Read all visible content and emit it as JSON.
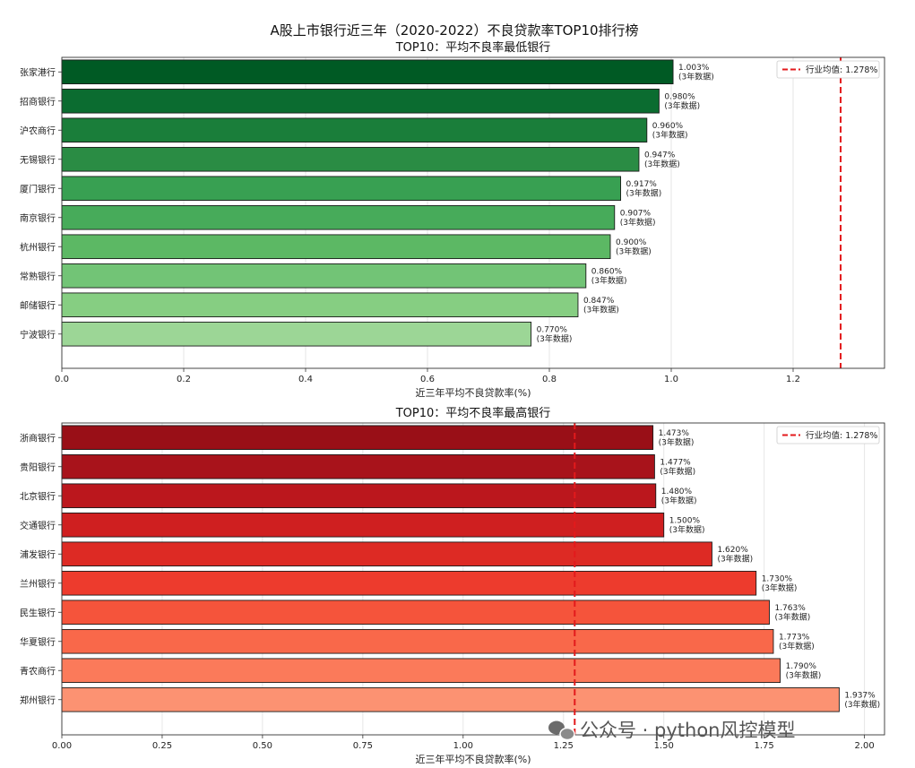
{
  "suptitle": "A股上市银行近三年（2020-2022）不良贷款率TOP10排行榜",
  "watermark": "公众号 · python风控模型",
  "chart_data": [
    {
      "type": "bar",
      "orientation": "horizontal",
      "title": "TOP10：平均不良率最低银行",
      "xlabel": "近三年平均不良贷款率(%)",
      "xlim": [
        0,
        1.35
      ],
      "xticks": [
        0.0,
        0.2,
        0.4,
        0.6,
        0.8,
        1.0,
        1.2
      ],
      "xtick_labels": [
        "0.0",
        "0.2",
        "0.4",
        "0.6",
        "0.8",
        "1.0",
        "1.2"
      ],
      "grid": "x",
      "categories": [
        "张家港行",
        "招商银行",
        "沪农商行",
        "无锡银行",
        "厦门银行",
        "南京银行",
        "杭州银行",
        "常熟银行",
        "邮储银行",
        "宁波银行"
      ],
      "values": [
        1.003,
        0.98,
        0.96,
        0.947,
        0.917,
        0.907,
        0.9,
        0.86,
        0.847,
        0.77
      ],
      "value_labels": [
        "1.003%",
        "0.980%",
        "0.960%",
        "0.947%",
        "0.917%",
        "0.907%",
        "0.900%",
        "0.860%",
        "0.847%",
        "0.770%"
      ],
      "sub_label": "(3年数据)",
      "colors": [
        "#005a24",
        "#0b6c30",
        "#1a7e3a",
        "#2a8c44",
        "#38a052",
        "#47ab5a",
        "#5cb864",
        "#72c476",
        "#86ce82",
        "#9cd696"
      ],
      "reference_line": {
        "value": 1.278,
        "label": "行业均值: 1.278%",
        "color": "#e31a1c"
      },
      "legend": "top-right"
    },
    {
      "type": "bar",
      "orientation": "horizontal",
      "title": "TOP10：平均不良率最高银行",
      "xlabel": "近三年平均不良贷款率(%)",
      "xlim": [
        0,
        2.05
      ],
      "xticks": [
        0.0,
        0.25,
        0.5,
        0.75,
        1.0,
        1.25,
        1.5,
        1.75,
        2.0
      ],
      "xtick_labels": [
        "0.00",
        "0.25",
        "0.50",
        "0.75",
        "1.00",
        "1.25",
        "1.50",
        "1.75",
        "2.00"
      ],
      "grid": "x",
      "categories": [
        "浙商银行",
        "贵阳银行",
        "北京银行",
        "交通银行",
        "浦发银行",
        "兰州银行",
        "民生银行",
        "华夏银行",
        "青农商行",
        "郑州银行"
      ],
      "values": [
        1.473,
        1.477,
        1.48,
        1.5,
        1.62,
        1.73,
        1.763,
        1.773,
        1.79,
        1.937
      ],
      "value_labels": [
        "1.473%",
        "1.477%",
        "1.480%",
        "1.500%",
        "1.620%",
        "1.730%",
        "1.763%",
        "1.773%",
        "1.790%",
        "1.937%"
      ],
      "sub_label": "(3年数据)",
      "colors": [
        "#990f17",
        "#a8131b",
        "#bb171d",
        "#cf1f20",
        "#dd2a24",
        "#ed3b2d",
        "#f5543b",
        "#f9684a",
        "#fb7a5a",
        "#fc9272"
      ],
      "reference_line": {
        "value": 1.278,
        "label": "行业均值: 1.278%",
        "color": "#e31a1c"
      },
      "legend": "top-right"
    }
  ]
}
